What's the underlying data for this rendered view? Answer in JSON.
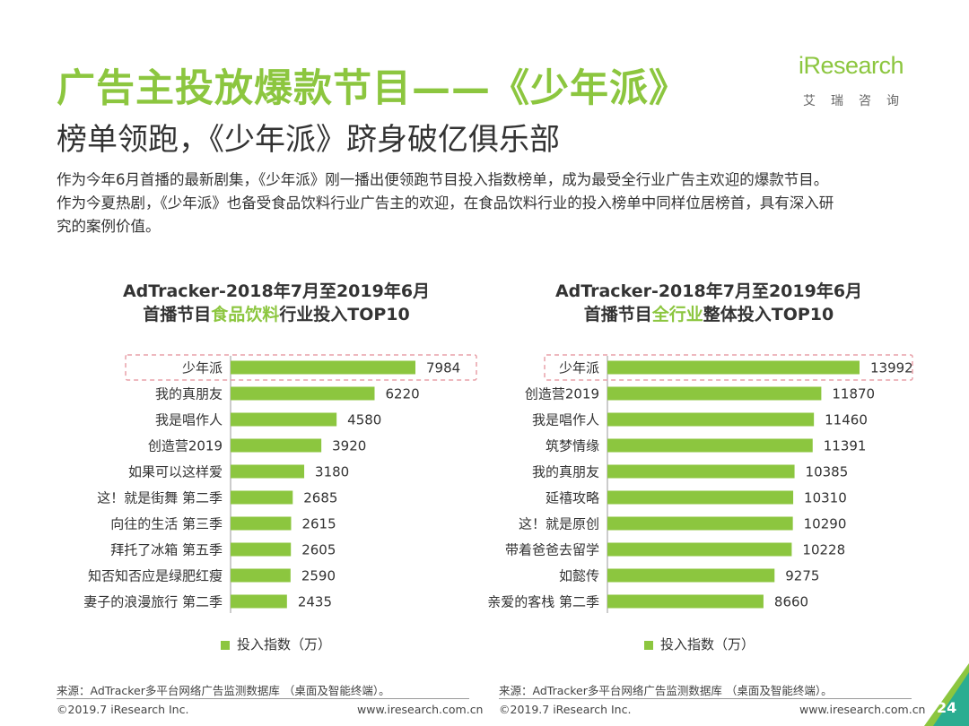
{
  "header": {
    "title": "广告主投放爆款节目——《少年派》",
    "subtitle": "榜单领跑，《少年派》跻身破亿俱乐部"
  },
  "logo": {
    "name": "iResearch",
    "tagline": "艾瑞咨询"
  },
  "description": [
    "作为今年6月首播的最新剧集，《少年派》刚一播出便领跑节目投入指数榜单，成为最受全行业广告主欢迎的爆款节目。",
    "作为今夏热剧，《少年派》也备受食品饮料行业广告主的欢迎，在食品饮料行业的投入榜单中同样位居榜首，具有深入研",
    "究的案例价值。"
  ],
  "colors": {
    "accent": "#8cc63f",
    "highlight_box": "#e8a0a8"
  },
  "chart_data": [
    {
      "type": "bar",
      "orientation": "horizontal",
      "title_line1": "AdTracker-2018年7月至2019年6月",
      "title_prefix": "首播节目",
      "title_highlight": "食品饮料",
      "title_suffix": "行业投入TOP10",
      "categories": [
        "少年派",
        "我的真朋友",
        "我是唱作人",
        "创造营2019",
        "如果可以这样爱",
        "这！就是街舞 第二季",
        "向往的生活 第三季",
        "拜托了冰箱 第五季",
        "知否知否应是绿肥红瘦",
        "妻子的浪漫旅行 第二季"
      ],
      "series": [
        {
          "name": "投入指数（万）",
          "values": [
            7984,
            6220,
            4580,
            3920,
            3180,
            2685,
            2615,
            2605,
            2590,
            2435
          ]
        }
      ],
      "highlighted_category": "少年派",
      "legend": "投入指数（万）",
      "source": "来源：AdTracker多平台网络广告监测数据库 （桌面及智能终端）。",
      "footer_left": "©2019.7 iResearch Inc.",
      "footer_right": "www.iresearch.com.cn"
    },
    {
      "type": "bar",
      "orientation": "horizontal",
      "title_line1": "AdTracker-2018年7月至2019年6月",
      "title_prefix": "首播节目",
      "title_highlight": "全行业",
      "title_suffix": "整体投入TOP10",
      "categories": [
        "少年派",
        "创造营2019",
        "我是唱作人",
        "筑梦情缘",
        "我的真朋友",
        "延禧攻略",
        "这！就是原创",
        "带着爸爸去留学",
        "如懿传",
        "亲爱的客栈 第二季"
      ],
      "series": [
        {
          "name": "投入指数（万）",
          "values": [
            13992,
            11870,
            11460,
            11391,
            10385,
            10310,
            10290,
            10228,
            9275,
            8660
          ]
        }
      ],
      "highlighted_category": "少年派",
      "legend": "投入指数（万）",
      "source": "来源：AdTracker多平台网络广告监测数据库 （桌面及智能终端）。",
      "footer_left": "©2019.7 iResearch Inc.",
      "footer_right": "www.iresearch.com.cn"
    }
  ],
  "page_number": "24"
}
